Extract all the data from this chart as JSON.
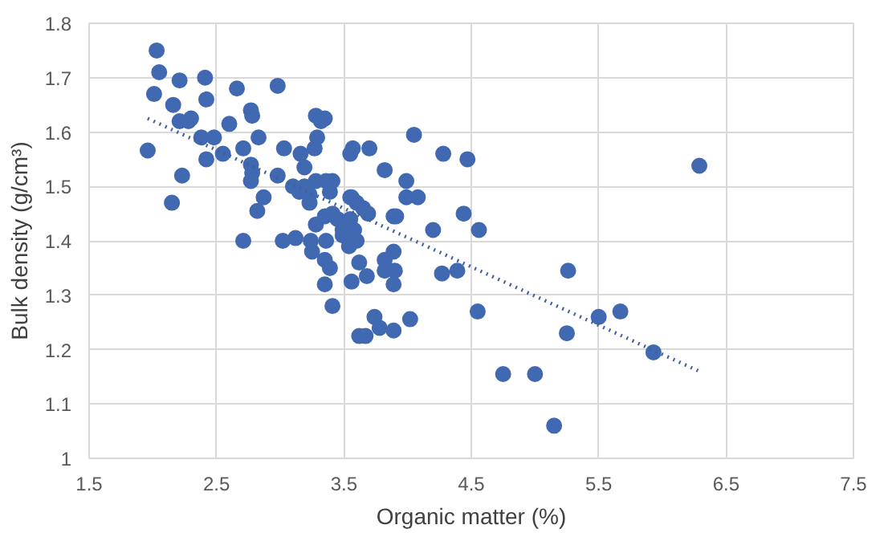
{
  "chart_data": {
    "type": "scatter",
    "xlabel": "Organic matter (%)",
    "ylabel": "Bulk density (g/cm³)",
    "xlim": [
      1.5,
      7.5
    ],
    "xticks": [
      1.5,
      2.5,
      3.5,
      4.5,
      5.5,
      6.5,
      7.5
    ],
    "ylim": [
      1,
      1.8
    ],
    "yticks": [
      1,
      1.1,
      1.2,
      1.3,
      1.4,
      1.5,
      1.6,
      1.7,
      1.8
    ],
    "grid": true,
    "marker": "circle",
    "series": [
      {
        "color": "#4169b1",
        "x": [
          2.03,
          2.05,
          2.01,
          2.21,
          2.41,
          2.16,
          2.42,
          2.21,
          2.28,
          2.3,
          1.96,
          2.38,
          2.48,
          2.42,
          2.55,
          2.23,
          2.15,
          2.66,
          2.6,
          2.77,
          2.78,
          2.83,
          2.71,
          2.77,
          2.78,
          2.77,
          2.87,
          2.82,
          2.71,
          2.98,
          3.03,
          2.98,
          3.02,
          3.12,
          3.16,
          3.19,
          3.28,
          3.35,
          3.32,
          3.29,
          3.27,
          3.1,
          3.15,
          3.19,
          3.23,
          3.28,
          3.36,
          3.39,
          3.23,
          3.28,
          3.35,
          3.41,
          3.24,
          3.25,
          3.36,
          3.35,
          3.39,
          3.35,
          3.41,
          3.45,
          3.49,
          3.55,
          3.41,
          3.57,
          3.55,
          3.7,
          4.05,
          4.28,
          4.47,
          3.82,
          3.99,
          3.99,
          4.08,
          4.44,
          4.56,
          4.2,
          3.89,
          3.91,
          3.56,
          3.6,
          3.65,
          3.69,
          3.55,
          3.49,
          3.54,
          3.58,
          3.6,
          3.89,
          3.82,
          3.62,
          3.82,
          3.9,
          3.89,
          3.56,
          3.68,
          4.27,
          4.39,
          5.26,
          4.55,
          4.02,
          3.74,
          3.78,
          3.89,
          3.62,
          3.67,
          5.5,
          5.67,
          5.25,
          4.75,
          5.0,
          5.15,
          6.29,
          5.93
        ],
        "values": [
          1.75,
          1.71,
          1.67,
          1.695,
          1.7,
          1.65,
          1.66,
          1.62,
          1.62,
          1.625,
          1.566,
          1.59,
          1.59,
          1.55,
          1.56,
          1.52,
          1.47,
          1.68,
          1.615,
          1.64,
          1.63,
          1.59,
          1.57,
          1.54,
          1.525,
          1.51,
          1.48,
          1.455,
          1.4,
          1.685,
          1.57,
          1.52,
          1.4,
          1.405,
          1.56,
          1.535,
          1.63,
          1.625,
          1.62,
          1.59,
          1.57,
          1.5,
          1.49,
          1.5,
          1.485,
          1.51,
          1.51,
          1.49,
          1.47,
          1.43,
          1.445,
          1.45,
          1.4,
          1.38,
          1.4,
          1.365,
          1.35,
          1.32,
          1.28,
          1.44,
          1.41,
          1.48,
          1.51,
          1.57,
          1.56,
          1.57,
          1.595,
          1.56,
          1.55,
          1.53,
          1.51,
          1.48,
          1.48,
          1.45,
          1.42,
          1.42,
          1.445,
          1.445,
          1.48,
          1.47,
          1.46,
          1.45,
          1.44,
          1.42,
          1.39,
          1.42,
          1.4,
          1.38,
          1.365,
          1.36,
          1.345,
          1.345,
          1.32,
          1.325,
          1.335,
          1.34,
          1.345,
          1.345,
          1.27,
          1.256,
          1.26,
          1.24,
          1.235,
          1.225,
          1.225,
          1.26,
          1.27,
          1.23,
          1.155,
          1.155,
          1.06,
          1.538,
          1.195
        ]
      },
      {
        "type": "line",
        "color": "#3f5f9f",
        "line_style": "dotted",
        "marker": "none",
        "x": [
          1.96,
          6.29
        ],
        "values": [
          1.625,
          1.16
        ]
      }
    ]
  }
}
